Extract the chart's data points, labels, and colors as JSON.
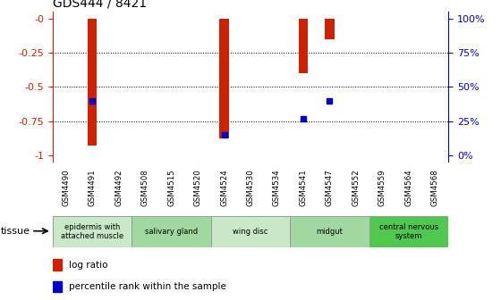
{
  "title": "GDS444 / 8421",
  "samples": [
    "GSM4490",
    "GSM4491",
    "GSM4492",
    "GSM4508",
    "GSM4515",
    "GSM4520",
    "GSM4524",
    "GSM4530",
    "GSM4534",
    "GSM4541",
    "GSM4547",
    "GSM4552",
    "GSM4559",
    "GSM4564",
    "GSM4568"
  ],
  "log_ratio": [
    0,
    -0.93,
    0,
    0,
    0,
    0,
    -0.88,
    0,
    0,
    -0.4,
    -0.15,
    0,
    0,
    0,
    0
  ],
  "percentile_rank": [
    null,
    0.4,
    null,
    null,
    null,
    null,
    0.15,
    null,
    null,
    0.27,
    0.4,
    null,
    null,
    null,
    null
  ],
  "ylim": [
    -1.05,
    0.05
  ],
  "yticks": [
    0,
    -0.25,
    -0.5,
    -0.75,
    -1.0
  ],
  "ytick_labels": [
    "-0",
    "-0.25",
    "-0.5",
    "-0.75",
    "-1"
  ],
  "right_ytick_positions": [
    -1.0,
    -0.75,
    -0.5,
    -0.25,
    0.0
  ],
  "right_ytick_labels": [
    "0%",
    "25%",
    "50%",
    "75%",
    "100%"
  ],
  "tissue_groups": [
    {
      "label": "epidermis with\nattached muscle",
      "start": 0,
      "end": 2,
      "color": "#c8e8c8"
    },
    {
      "label": "salivary gland",
      "start": 3,
      "end": 5,
      "color": "#a0d8a0"
    },
    {
      "label": "wing disc",
      "start": 6,
      "end": 8,
      "color": "#c8e8c8"
    },
    {
      "label": "midgut",
      "start": 9,
      "end": 11,
      "color": "#a0d8a0"
    },
    {
      "label": "central nervous\nsystem",
      "start": 12,
      "end": 14,
      "color": "#50c850"
    }
  ],
  "bar_color": "#cc2200",
  "dot_color": "#0000cc",
  "grid_color": "#000000",
  "left_label_color": "#cc2200",
  "right_label_color": "#0000cc",
  "bg_color": "#ffffff"
}
